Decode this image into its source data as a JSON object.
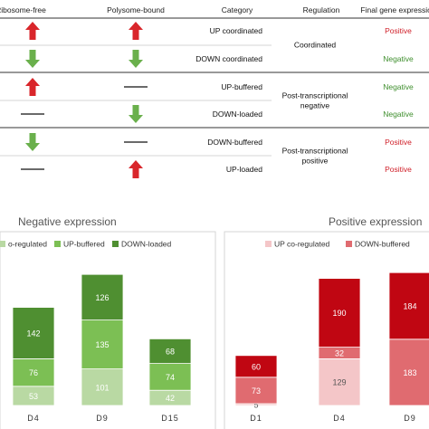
{
  "table": {
    "headers": [
      "Ribosome-free",
      "Polysome-bound",
      "Category",
      "Regulation",
      "Final gene expression"
    ],
    "rows": [
      {
        "ribosome_free": "up",
        "polysome_bound": "up",
        "category": "UP coordinated",
        "outcome": "Positive"
      },
      {
        "ribosome_free": "down",
        "polysome_bound": "down",
        "category": "DOWN coordinated",
        "outcome": "Negative"
      },
      {
        "ribosome_free": "up",
        "polysome_bound": "none",
        "category": "UP-buffered",
        "outcome": "Negative"
      },
      {
        "ribosome_free": "none",
        "polysome_bound": "down",
        "category": "DOWN-loaded",
        "outcome": "Negative"
      },
      {
        "ribosome_free": "down",
        "polysome_bound": "none",
        "category": "DOWN-buffered",
        "outcome": "Positive"
      },
      {
        "ribosome_free": "none",
        "polysome_bound": "up",
        "category": "UP-loaded",
        "outcome": "Positive"
      }
    ],
    "regulation_groups": [
      {
        "lines": [
          "Coordinated"
        ],
        "rows": [
          0,
          1
        ]
      },
      {
        "lines": [
          "Post-transcriptional",
          "negative"
        ],
        "rows": [
          2,
          3
        ]
      },
      {
        "lines": [
          "Post-transcriptional",
          "positive"
        ],
        "rows": [
          4,
          5
        ]
      }
    ]
  },
  "colors": {
    "up_arrow": "#d9262b",
    "down_arrow": "#6ab04c",
    "positive": "#d0202a",
    "negative": "#3f8f2e",
    "neg_light": "#b9d9a3",
    "neg_mid": "#7cbf54",
    "neg_dark": "#4f8f31",
    "pos_light": "#f4c6c8",
    "pos_mid": "#e06b70",
    "pos_dark": "#c00612"
  },
  "chart_data": [
    {
      "type": "bar",
      "stacked": true,
      "title": "Negative expression",
      "legend": [
        "o-regulated",
        "UP-buffered",
        "DOWN-loaded"
      ],
      "categories": [
        "D4",
        "D9",
        "D15"
      ],
      "series": [
        {
          "name": "o-regulated",
          "values": [
            53,
            101,
            42
          ]
        },
        {
          "name": "UP-buffered",
          "values": [
            76,
            135,
            74
          ]
        },
        {
          "name": "DOWN-loaded",
          "values": [
            142,
            126,
            68
          ]
        }
      ]
    },
    {
      "type": "bar",
      "stacked": true,
      "title": "Positive expression",
      "legend": [
        "UP co-regulated",
        "DOWN-buffered"
      ],
      "categories": [
        "D1",
        "D4",
        "D9"
      ],
      "series": [
        {
          "name": "UP co-regulated",
          "values": [
            5,
            129,
            0
          ]
        },
        {
          "name": "DOWN-buffered",
          "values": [
            73,
            32,
            183
          ]
        },
        {
          "name": "",
          "values": [
            60,
            190,
            184
          ]
        }
      ]
    }
  ]
}
